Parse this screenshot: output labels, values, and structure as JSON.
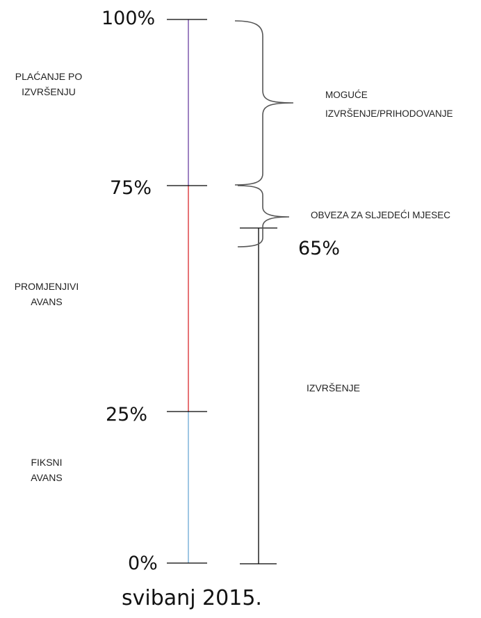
{
  "scale": {
    "ticks": [
      {
        "label": "100%",
        "value": 100
      },
      {
        "label": "75%",
        "value": 75
      },
      {
        "label": "25%",
        "value": 25
      },
      {
        "label": "0%",
        "value": 0
      }
    ],
    "segments": [
      {
        "from": 75,
        "to": 100,
        "color": "#6a3fa0"
      },
      {
        "from": 25,
        "to": 75,
        "color": "#d9262b"
      },
      {
        "from": 0,
        "to": 25,
        "color": "#6aa8d4"
      }
    ]
  },
  "execution_bar": {
    "label": "65%",
    "value": 65,
    "color": "#000000"
  },
  "left_labels": {
    "placanje": [
      "PLAĆANJE PO",
      "IZVRŠENJU"
    ],
    "promjenjivi": [
      "PROMJENJIVI",
      "AVANS"
    ],
    "fiksni": [
      "FIKSNI",
      "AVANS"
    ]
  },
  "right_labels": {
    "moguce": [
      "MOGUĆE",
      "IZVRŠENJE/PRIHODOVANJE"
    ],
    "obveza": "OBVEZA ZA SLJEDEĆI MJESEC",
    "izvrsenje": "IZVRŠENJE"
  },
  "date_label": "svibanj 2015."
}
